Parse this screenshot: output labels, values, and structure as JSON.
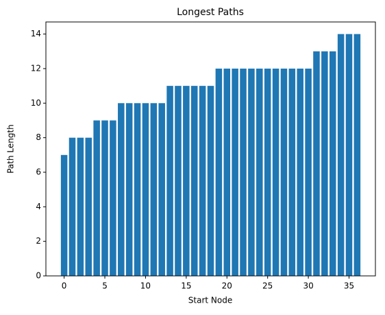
{
  "chart_data": {
    "type": "bar",
    "title": "Longest Paths",
    "x_label": "Start Node",
    "y_label": "Path Length",
    "x": [
      0,
      1,
      2,
      3,
      4,
      5,
      6,
      7,
      8,
      9,
      10,
      11,
      12,
      13,
      14,
      15,
      16,
      17,
      18,
      19,
      20,
      21,
      22,
      23,
      24,
      25,
      26,
      27,
      28,
      29,
      30,
      31,
      32,
      33,
      34,
      35,
      36
    ],
    "values": [
      7,
      8,
      8,
      8,
      9,
      9,
      9,
      10,
      10,
      10,
      10,
      10,
      10,
      11,
      11,
      11,
      11,
      11,
      11,
      12,
      12,
      12,
      12,
      12,
      12,
      12,
      12,
      12,
      12,
      12,
      12,
      13,
      13,
      13,
      14,
      14,
      14
    ],
    "color": "#1f77b4",
    "xlim": [
      -2.24,
      38.24
    ],
    "xticks": [
      0,
      5,
      10,
      15,
      20,
      25,
      30,
      35
    ],
    "ylim": [
      0,
      14.7
    ],
    "yticks": [
      0,
      2,
      4,
      6,
      8,
      10,
      12,
      14
    ]
  }
}
